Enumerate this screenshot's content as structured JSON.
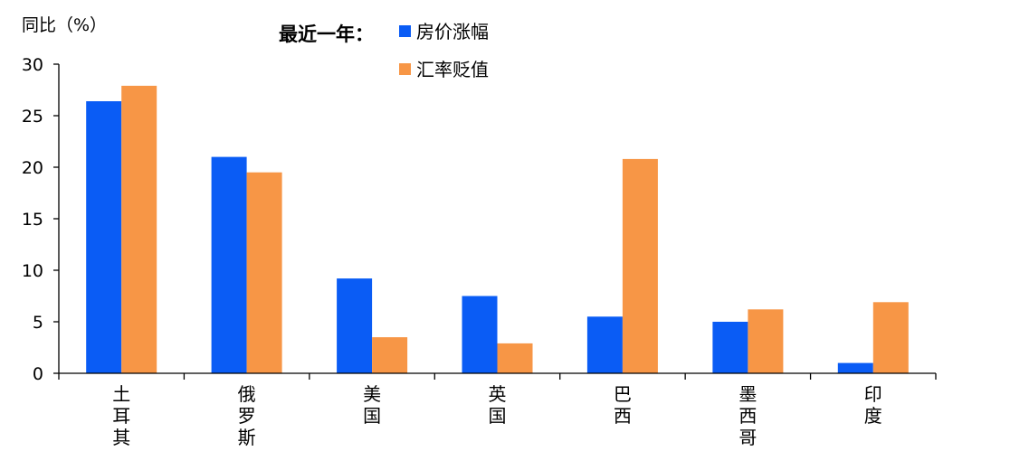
{
  "chart_data": {
    "type": "bar",
    "ylabel": "同比（%）",
    "legend_title": "最近一年：",
    "categories": [
      "土耳其",
      "俄罗斯",
      "美国",
      "英国",
      "巴西",
      "墨西哥",
      "印度"
    ],
    "series": [
      {
        "name": "房价涨幅",
        "color": "#0a5cf5",
        "values": [
          26.4,
          21.0,
          9.2,
          7.5,
          5.5,
          5.0,
          1.0
        ]
      },
      {
        "name": "汇率贬值",
        "color": "#f79646",
        "values": [
          27.9,
          19.5,
          3.5,
          2.9,
          20.8,
          6.2,
          6.9
        ]
      }
    ],
    "ylim": [
      0,
      30
    ],
    "yticks": [
      0,
      5,
      10,
      15,
      20,
      25,
      30
    ],
    "grid": false,
    "legend_position": "top-center"
  }
}
